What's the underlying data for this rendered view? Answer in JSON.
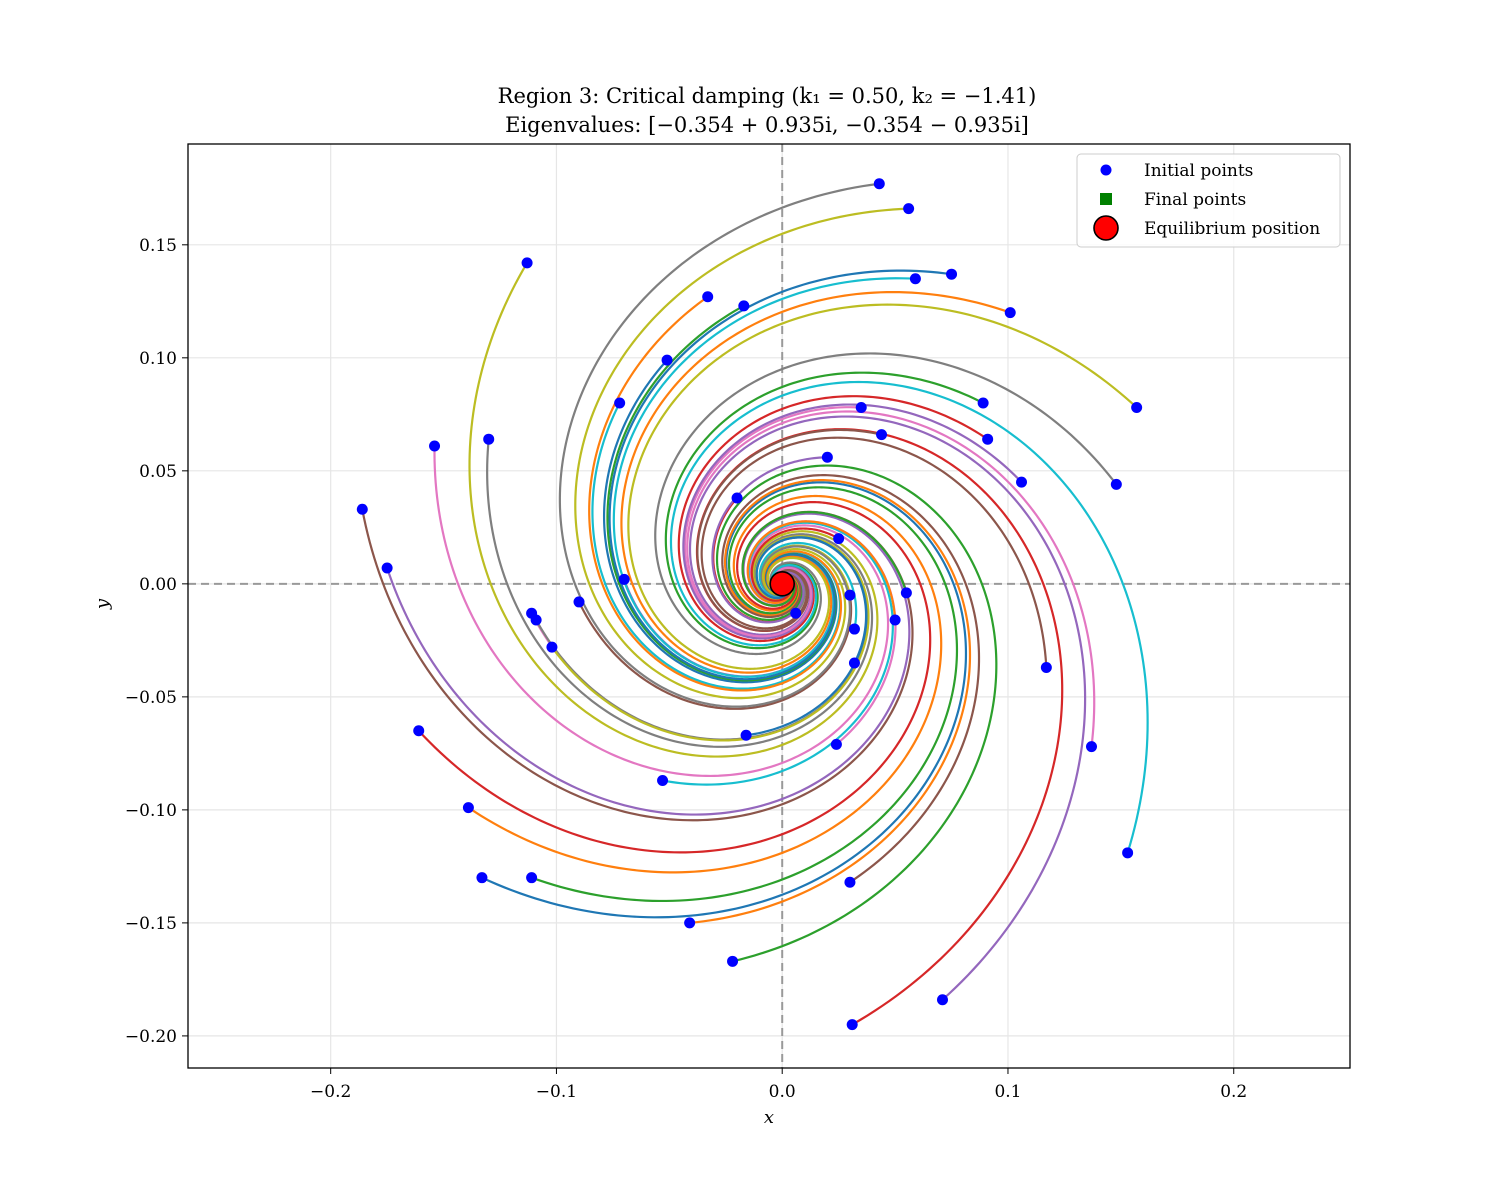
{
  "chart_data": {
    "type": "line",
    "title": "Region 3: Critical damping (k₁ = 0.50, k₂ = −1.41)",
    "subtitle": "Eigenvalues: [−0.354 + 0.935i, −0.354 − 0.935i]",
    "xlabel": "x",
    "ylabel": "y",
    "xlim": [
      -0.2632,
      0.2515
    ],
    "ylim": [
      -0.2142,
      0.1946
    ],
    "x_ticks": [
      -0.2,
      -0.1,
      0.0,
      0.1,
      0.2
    ],
    "x_tick_labels": [
      "−0.2",
      "−0.1",
      "0.0",
      "0.1",
      "0.2"
    ],
    "y_ticks": [
      -0.2,
      -0.15,
      -0.1,
      -0.05,
      0.0,
      0.05,
      0.1,
      0.15
    ],
    "y_tick_labels": [
      "−0.20",
      "−0.15",
      "−0.10",
      "−0.05",
      "0.00",
      "0.05",
      "0.10",
      "0.15"
    ],
    "grid": true,
    "legend_position": "top-right",
    "legend": [
      "Initial points",
      "Final points",
      "Equilibrium position"
    ],
    "equilibrium": [
      0.0,
      0.0
    ],
    "reference_lines": {
      "x": 0.0,
      "y": 0.0
    },
    "eigenvalues": {
      "real": -0.354,
      "imag": 0.935
    },
    "colors": {
      "initial_point": "#0000ff",
      "final_point": "#008000",
      "equilibrium": "#ff0000",
      "cycle": [
        "#1f77b4",
        "#ff7f0e",
        "#2ca02c",
        "#d62728",
        "#9467bd",
        "#8c564b",
        "#e377c2",
        "#7f7f7f",
        "#bcbd22",
        "#17becf"
      ]
    },
    "initial_points": [
      [
        -0.133,
        -0.13
      ],
      [
        -0.139,
        -0.099
      ],
      [
        -0.111,
        -0.13
      ],
      [
        -0.161,
        -0.065
      ],
      [
        -0.175,
        0.007
      ],
      [
        -0.186,
        0.033
      ],
      [
        -0.154,
        0.061
      ],
      [
        -0.13,
        0.064
      ],
      [
        -0.113,
        0.142
      ],
      [
        -0.072,
        0.08
      ],
      [
        -0.051,
        0.099
      ],
      [
        -0.033,
        0.127
      ],
      [
        -0.017,
        0.123
      ],
      [
        -0.02,
        0.038
      ],
      [
        -0.07,
        0.002
      ],
      [
        -0.09,
        -0.008
      ],
      [
        -0.111,
        -0.013
      ],
      [
        -0.109,
        -0.016
      ],
      [
        -0.102,
        -0.028
      ],
      [
        -0.053,
        -0.087
      ],
      [
        -0.016,
        -0.067
      ],
      [
        -0.041,
        -0.15
      ],
      [
        -0.022,
        -0.167
      ],
      [
        0.031,
        -0.195
      ],
      [
        0.071,
        -0.184
      ],
      [
        0.03,
        -0.132
      ],
      [
        0.024,
        -0.071
      ],
      [
        0.006,
        -0.013
      ],
      [
        0.03,
        -0.005
      ],
      [
        0.032,
        -0.02
      ],
      [
        0.032,
        -0.035
      ],
      [
        0.05,
        -0.016
      ],
      [
        0.055,
        -0.004
      ],
      [
        0.025,
        0.02
      ],
      [
        0.02,
        0.056
      ],
      [
        0.044,
        0.066
      ],
      [
        0.035,
        0.078
      ],
      [
        0.043,
        0.177
      ],
      [
        0.056,
        0.166
      ],
      [
        0.059,
        0.135
      ],
      [
        0.075,
        0.137
      ],
      [
        0.101,
        0.12
      ],
      [
        0.089,
        0.08
      ],
      [
        0.091,
        0.064
      ],
      [
        0.106,
        0.045
      ],
      [
        0.117,
        -0.037
      ],
      [
        0.137,
        -0.072
      ],
      [
        0.148,
        0.044
      ],
      [
        0.157,
        0.078
      ],
      [
        0.153,
        -0.119
      ]
    ]
  }
}
